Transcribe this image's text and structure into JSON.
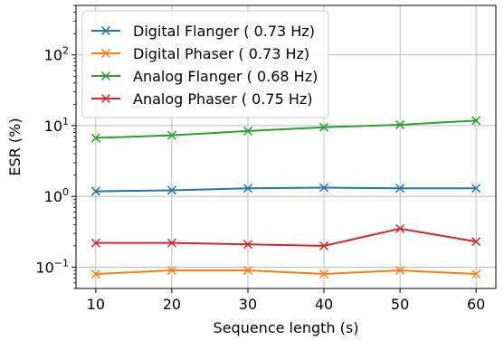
{
  "chart_data": {
    "type": "line",
    "title": "",
    "xlabel": "Sequence length (s)",
    "ylabel": "ESR (%)",
    "yscale": "log",
    "xlim": [
      7.4,
      62.6
    ],
    "ylim": [
      0.05,
      500
    ],
    "grid": true,
    "legend_position": "top-left",
    "x": [
      10,
      20,
      30,
      40,
      50,
      60
    ],
    "x_ticks": [
      "10",
      "20",
      "30",
      "40",
      "50",
      "60"
    ],
    "y_ticks": [
      {
        "value": 0.1,
        "base": "10",
        "exp": "−1"
      },
      {
        "value": 1,
        "base": "10",
        "exp": "0"
      },
      {
        "value": 10,
        "base": "10",
        "exp": "1"
      },
      {
        "value": 100,
        "base": "10",
        "exp": "2"
      }
    ],
    "series": [
      {
        "name": "Digital Flanger ( 0.73 Hz)",
        "color": "#1f77b4",
        "values": [
          1.18,
          1.22,
          1.3,
          1.33,
          1.3,
          1.3
        ]
      },
      {
        "name": "Digital Phaser ( 0.73 Hz)",
        "color": "#ff7f0e",
        "values": [
          0.08,
          0.09,
          0.09,
          0.08,
          0.09,
          0.08
        ]
      },
      {
        "name": "Analog Flanger ( 0.68 Hz)",
        "color": "#2ca02c",
        "values": [
          6.7,
          7.3,
          8.4,
          9.5,
          10.3,
          11.8
        ]
      },
      {
        "name": "Analog Phaser ( 0.75 Hz)",
        "color": "#d62728",
        "values": [
          0.22,
          0.22,
          0.21,
          0.2,
          0.35,
          0.23
        ]
      }
    ]
  }
}
